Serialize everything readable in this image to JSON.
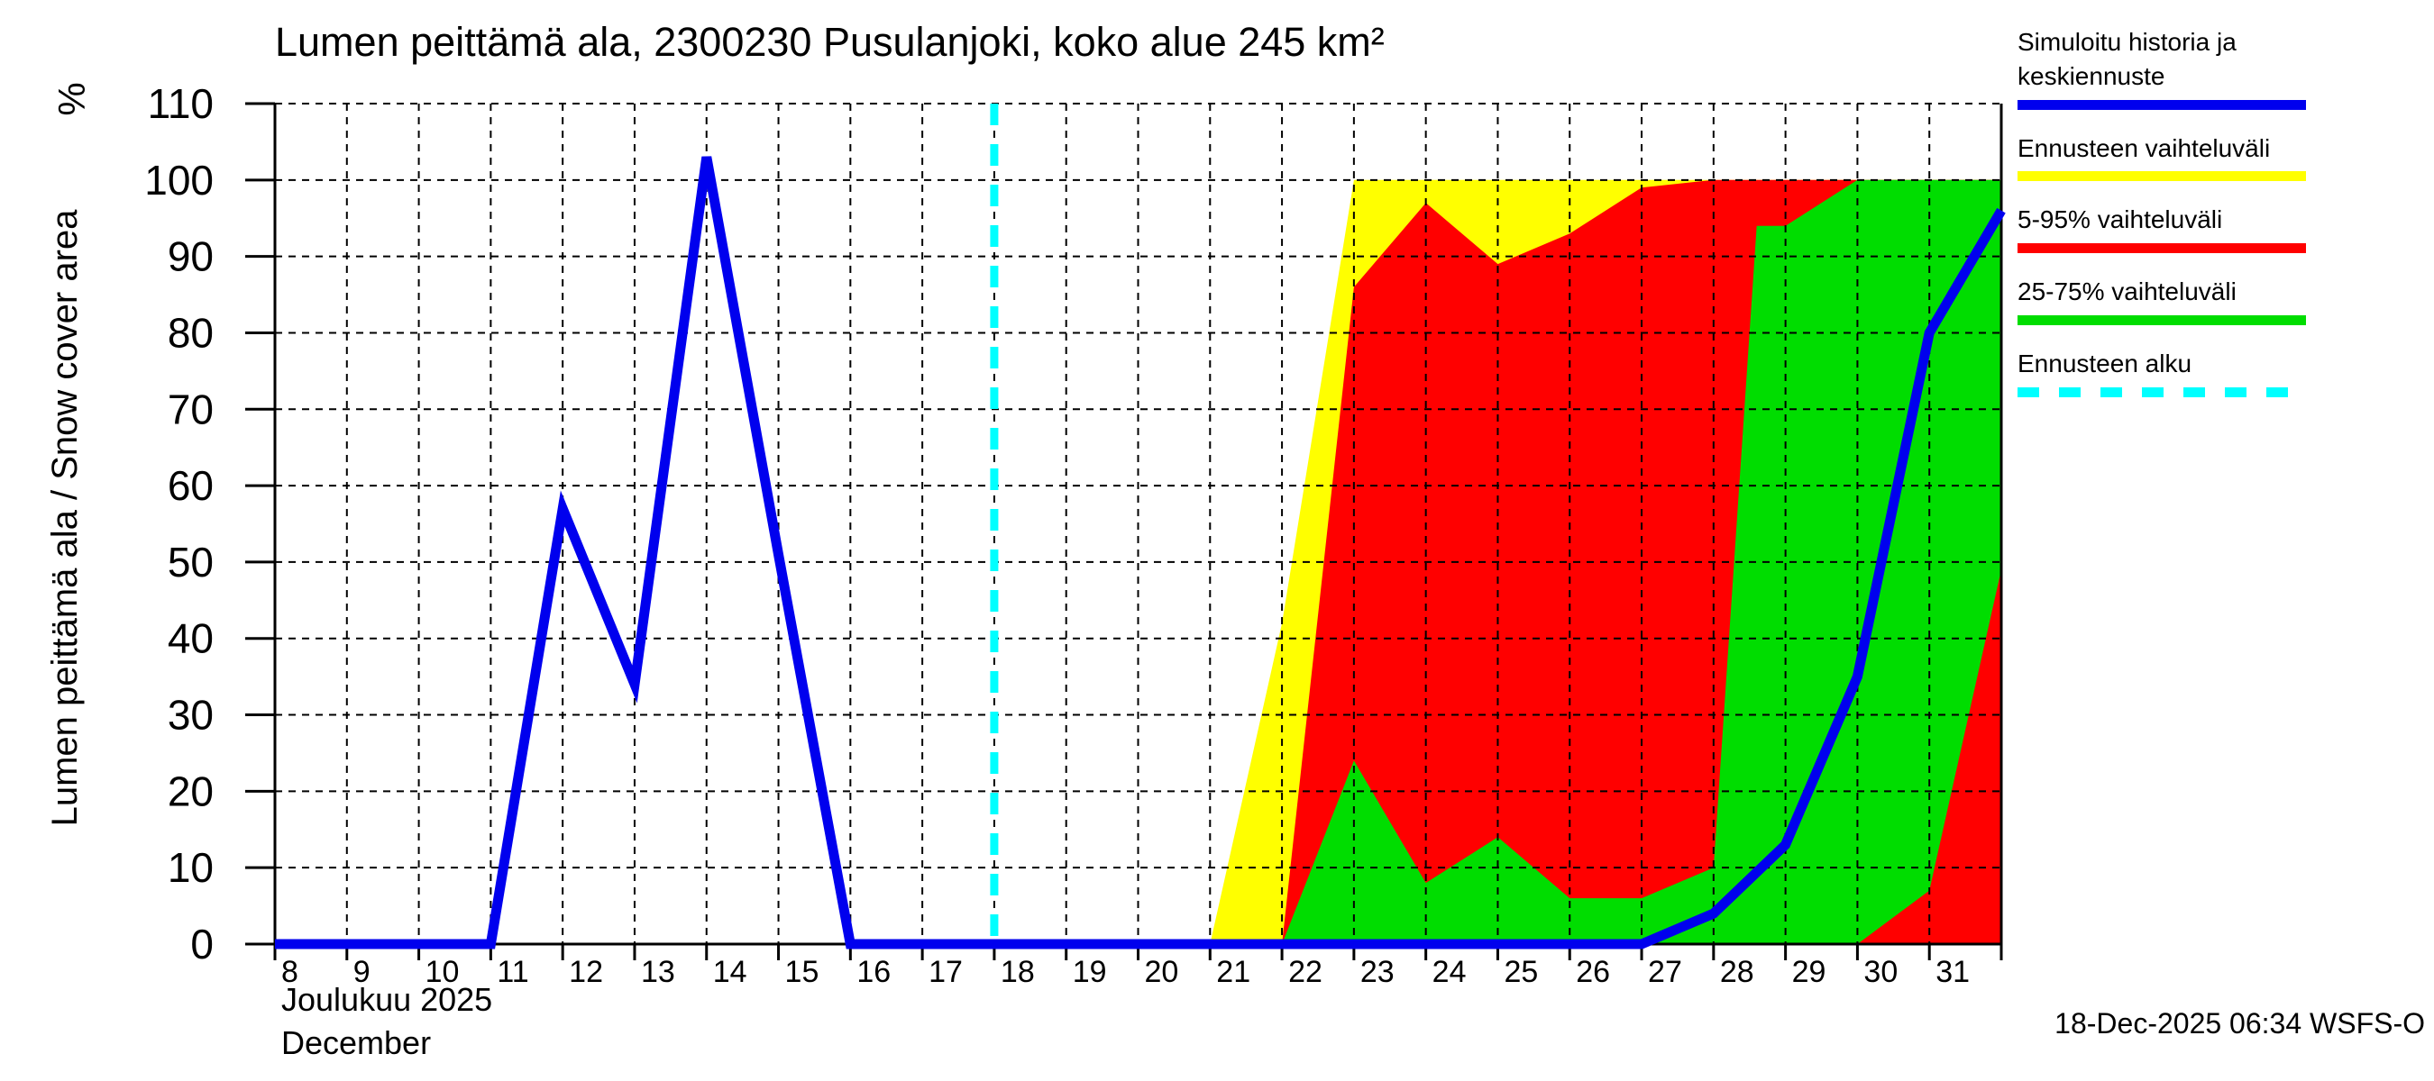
{
  "title": "Lumen peittämä ala, 2300230 Pusulanjoki, koko alue 245 km²",
  "y_axis": {
    "unit": "%",
    "label": "Lumen peittämä ala / Snow cover area"
  },
  "x_axis": {
    "month_fi": "Joulukuu 2025",
    "month_en": "December"
  },
  "footer": {
    "timestamp": "18-Dec-2025 06:34 WSFS-O"
  },
  "colors": {
    "median": "#0000ee",
    "minmax_band": "#ffff00",
    "p5_95_band": "#ff0000",
    "p25_75_band": "#00dd00",
    "forecast_start": "#00ffff",
    "grid": "#000000"
  },
  "legend": [
    {
      "label": "Simuloitu historia ja keskiennuste",
      "color": "#0000ee",
      "dashed": false
    },
    {
      "label": "Ennusteen vaihteluväli",
      "color": "#ffff00",
      "dashed": false
    },
    {
      "label": "5-95% vaihteluväli",
      "color": "#ff0000",
      "dashed": false
    },
    {
      "label": "25-75% vaihteluväli",
      "color": "#00dd00",
      "dashed": false
    },
    {
      "label": "Ennusteen alku",
      "color": "#00ffff",
      "dashed": true
    }
  ],
  "chart_data": {
    "type": "area",
    "title": "Lumen peittämä ala, 2300230 Pusulanjoki, koko alue 245 km²",
    "xlabel": "Joulukuu 2025 / December",
    "ylabel": "Lumen peittämä ala / Snow cover area (%)",
    "x_range": [
      8,
      32
    ],
    "y_range": [
      0,
      110
    ],
    "x_tick_days": [
      8,
      9,
      10,
      11,
      12,
      13,
      14,
      15,
      16,
      17,
      18,
      19,
      20,
      21,
      22,
      23,
      24,
      25,
      26,
      27,
      28,
      29,
      30,
      31
    ],
    "y_ticks": [
      0,
      10,
      20,
      30,
      40,
      50,
      60,
      70,
      80,
      90,
      100,
      110
    ],
    "grid": "dashed",
    "legend_position": "right-outside",
    "forecast_start_day": 18,
    "median": {
      "name": "Simuloitu historia ja keskiennuste",
      "color": "#0000ee",
      "days": [
        8,
        9,
        10,
        11,
        12,
        13,
        14,
        15,
        16,
        17,
        18,
        19,
        20,
        21,
        22,
        23,
        24,
        25,
        26,
        27,
        28,
        29,
        30,
        31,
        32
      ],
      "values": [
        0,
        0,
        0,
        0,
        57,
        34,
        103,
        51,
        0,
        0,
        0,
        0,
        0,
        0,
        0,
        0,
        0,
        0,
        0,
        0,
        4,
        13,
        35,
        80,
        96
      ]
    },
    "bands": [
      {
        "name": "Ennusteen vaihteluväli (min-max)",
        "color": "#ffff00",
        "upper": [
          [
            21,
            0
          ],
          [
            22,
            42
          ],
          [
            23,
            100
          ],
          [
            32,
            100
          ]
        ],
        "lower": [
          [
            21,
            0
          ],
          [
            32,
            0
          ]
        ]
      },
      {
        "name": "5-95% vaihteluväli",
        "color": "#ff0000",
        "upper": [
          [
            22,
            0
          ],
          [
            23,
            86
          ],
          [
            24,
            97
          ],
          [
            25,
            89
          ],
          [
            26,
            93
          ],
          [
            27,
            99
          ],
          [
            28,
            100
          ],
          [
            32,
            100
          ]
        ],
        "lower": [
          [
            22,
            0
          ],
          [
            32,
            0
          ]
        ]
      },
      {
        "name": "25-75% vaihteluväli",
        "color": "#00dd00",
        "upper": [
          [
            22,
            0
          ],
          [
            23,
            24
          ],
          [
            24,
            8
          ],
          [
            25,
            14
          ],
          [
            26,
            6
          ],
          [
            27,
            6
          ],
          [
            28,
            10
          ],
          [
            28.6,
            94
          ],
          [
            29,
            94
          ],
          [
            30,
            100
          ],
          [
            32,
            100
          ]
        ],
        "lower": [
          [
            22,
            0
          ],
          [
            30,
            0
          ],
          [
            31,
            7
          ],
          [
            32,
            49
          ]
        ]
      }
    ]
  }
}
